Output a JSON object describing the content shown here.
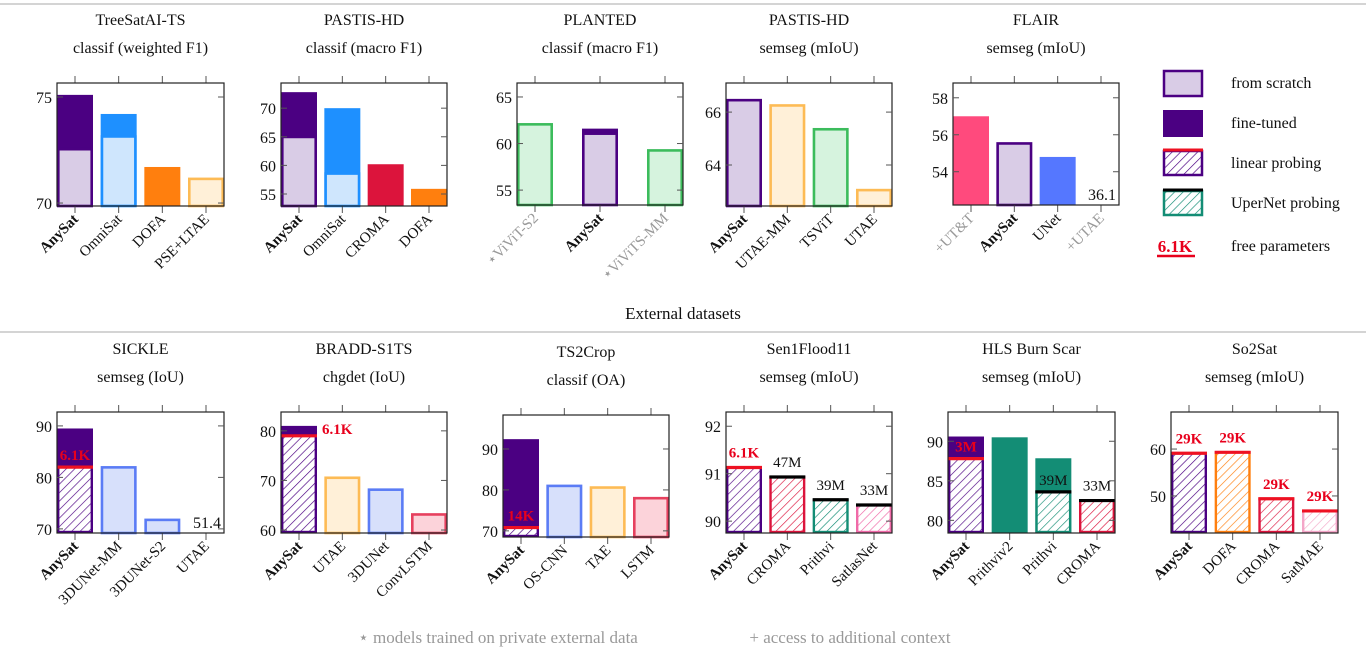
{
  "section_label": "External datasets",
  "footnotes": [
    "⋆ models trained on private external data",
    "+ access to additional context"
  ],
  "colors": {
    "red_annotation": "#e8001c",
    "gray_label": "#999999",
    "upernet_line": "#000000",
    "linear_line": "#ee1122"
  },
  "legend": [
    {
      "label": "from scratch",
      "method": "scratch",
      "color": "#4b0082",
      "light": "#d9cce6"
    },
    {
      "label": "fine-tuned",
      "method": "finetuned",
      "color": "#4b0082"
    },
    {
      "label": "linear probing",
      "method": "linear",
      "color": "#4b0082"
    },
    {
      "label": "UperNet probing",
      "method": "upernet",
      "color": "#138d75"
    },
    {
      "label": "free parameters",
      "method": "params",
      "sample": "6.1K",
      "color": "#e8001c"
    }
  ],
  "chart_data": [
    {
      "type": "bar",
      "title": "TreeSatAI-TS",
      "subtitle": "classif (weighted F1)",
      "ylim": [
        69.86,
        75.66
      ],
      "yticks": [
        70,
        75
      ],
      "bars": [
        {
          "label": "AnySat",
          "bold": true,
          "color": "#4b0082",
          "light": "#d9cce6",
          "segments": [
            {
              "method": "finetuned",
              "value": 75.1
            },
            {
              "method": "scratch",
              "value": 72.6
            }
          ]
        },
        {
          "label": "OmniSat",
          "color": "#1e90ff",
          "light": "#cfe6fd",
          "segments": [
            {
              "method": "finetuned",
              "value": 74.2
            },
            {
              "method": "scratch",
              "value": 73.2
            }
          ]
        },
        {
          "label": "DOFA",
          "color": "#ff7f0e",
          "segments": [
            {
              "method": "finetuned",
              "value": 71.7
            }
          ]
        },
        {
          "label": "PSE+LTAE",
          "color": "#fdbb55",
          "light": "#fff0d8",
          "segments": [
            {
              "method": "scratch",
              "value": 71.2
            }
          ]
        }
      ]
    },
    {
      "type": "bar",
      "title": "PASTIS-HD",
      "subtitle": "classif (macro F1)",
      "ylim": [
        52.9,
        74.4
      ],
      "yticks": [
        55,
        60,
        65,
        70
      ],
      "bars": [
        {
          "label": "AnySat",
          "bold": true,
          "color": "#4b0082",
          "light": "#d9cce6",
          "segments": [
            {
              "method": "finetuned",
              "value": 72.8
            },
            {
              "method": "scratch",
              "value": 65.2
            }
          ]
        },
        {
          "label": "OmniSat",
          "color": "#1e90ff",
          "light": "#cfe6fd",
          "segments": [
            {
              "method": "finetuned",
              "value": 70.0
            },
            {
              "method": "scratch",
              "value": 58.8
            }
          ]
        },
        {
          "label": "CROMA",
          "color": "#dc143c",
          "segments": [
            {
              "method": "finetuned",
              "value": 60.2
            }
          ]
        },
        {
          "label": "DOFA",
          "color": "#ff7f0e",
          "segments": [
            {
              "method": "finetuned",
              "value": 55.9
            }
          ]
        }
      ]
    },
    {
      "type": "bar",
      "title": "PLANTED",
      "subtitle": "classif (macro F1)",
      "ylim": [
        53.4,
        66.5
      ],
      "yticks": [
        55,
        60,
        65
      ],
      "bars": [
        {
          "label": "⋆ViViT-S2",
          "gray": true,
          "color": "#3cbc5c",
          "light": "#d6f3de",
          "segments": [
            {
              "method": "scratch",
              "value": 62.2
            }
          ]
        },
        {
          "label": "AnySat",
          "bold": true,
          "color": "#4b0082",
          "light": "#d9cce6",
          "segments": [
            {
              "method": "finetuned",
              "value": 61.6
            },
            {
              "method": "scratch",
              "value": 61.2
            }
          ]
        },
        {
          "label": "⋆ViViTS-MM",
          "gray": true,
          "color": "#3cbc5c",
          "light": "#d6f3de",
          "segments": [
            {
              "method": "scratch",
              "value": 59.4
            }
          ]
        }
      ]
    },
    {
      "type": "bar",
      "title": "PASTIS-HD",
      "subtitle": "semseg (mIoU)",
      "ylim": [
        62.45,
        67.1
      ],
      "yticks": [
        64,
        66
      ],
      "bars": [
        {
          "label": "AnySat",
          "bold": true,
          "color": "#4b0082",
          "light": "#d9cce6",
          "segments": [
            {
              "method": "scratch",
              "value": 66.5
            }
          ]
        },
        {
          "label": "UTAE-MM",
          "color": "#fdbb55",
          "light": "#fff0d8",
          "segments": [
            {
              "method": "scratch",
              "value": 66.3
            }
          ]
        },
        {
          "label": "TSViT",
          "color": "#3cbc5c",
          "light": "#d6f3de",
          "segments": [
            {
              "method": "scratch",
              "value": 65.4
            }
          ]
        },
        {
          "label": "UTAE",
          "color": "#fdbb55",
          "light": "#fff0d8",
          "segments": [
            {
              "method": "scratch",
              "value": 63.1
            }
          ]
        }
      ]
    },
    {
      "type": "bar",
      "title": "FLAIR",
      "subtitle": "semseg (mIoU)",
      "ylim": [
        52.2,
        58.8
      ],
      "yticks": [
        54,
        56,
        58
      ],
      "bars": [
        {
          "label": "+UT&T",
          "gray": true,
          "color": "#ff4a7d",
          "segments": [
            {
              "method": "finetuned",
              "value": 57.0
            }
          ]
        },
        {
          "label": "AnySat",
          "bold": true,
          "color": "#4b0082",
          "light": "#d9cce6",
          "segments": [
            {
              "method": "scratch",
              "value": 55.6
            }
          ]
        },
        {
          "label": "UNet",
          "color": "#5577ff",
          "segments": [
            {
              "method": "finetuned",
              "value": 54.8
            }
          ]
        },
        {
          "label": "+UTAE",
          "gray": true,
          "color": "#fdbb55",
          "segments": [],
          "offscale_value": "36.1"
        }
      ]
    },
    {
      "type": "bar",
      "title": "SICKLE",
      "subtitle": "semseg (IoU)",
      "ylim": [
        69.2,
        92.7
      ],
      "yticks": [
        70,
        80,
        90
      ],
      "bars": [
        {
          "label": "AnySat",
          "bold": true,
          "color": "#4b0082",
          "segments": [
            {
              "method": "finetuned",
              "value": 89.5
            },
            {
              "method": "linear",
              "value": 82.0
            }
          ],
          "annotation": {
            "text": "6.1K",
            "red": true,
            "where": "inside"
          }
        },
        {
          "label": "3DUNet-MM",
          "color": "#5b7cf5",
          "light": "#d7e0fb",
          "segments": [
            {
              "method": "scratch",
              "value": 82.2
            }
          ]
        },
        {
          "label": "3DUNet-S2",
          "color": "#5b7cf5",
          "light": "#d7e0fb",
          "segments": [
            {
              "method": "scratch",
              "value": 72.0
            }
          ]
        },
        {
          "label": "UTAE",
          "color": "#fdbb55",
          "segments": [],
          "offscale_value": "51.4"
        }
      ]
    },
    {
      "type": "bar",
      "title": "BRADD-S1TS",
      "subtitle": "chgdet (IoU)",
      "ylim": [
        59.4,
        83.8
      ],
      "yticks": [
        60,
        70,
        80
      ],
      "bars": [
        {
          "label": "AnySat",
          "bold": true,
          "color": "#4b0082",
          "segments": [
            {
              "method": "finetuned",
              "value": 81.0
            },
            {
              "method": "linear",
              "value": 79.0
            }
          ],
          "annotation": {
            "text": "6.1K",
            "red": true,
            "where": "right"
          }
        },
        {
          "label": "UTAE",
          "color": "#fdbb55",
          "light": "#fff0d8",
          "segments": [
            {
              "method": "scratch",
              "value": 70.8
            }
          ]
        },
        {
          "label": "3DUNet",
          "color": "#5b7cf5",
          "light": "#d7e0fb",
          "segments": [
            {
              "method": "scratch",
              "value": 68.4
            }
          ]
        },
        {
          "label": "ConvLSTM",
          "color": "#e6405e",
          "light": "#fcd3da",
          "segments": [
            {
              "method": "scratch",
              "value": 63.4
            }
          ]
        }
      ]
    },
    {
      "type": "bar",
      "title": "TS2Crop",
      "subtitle": "classif (OA)",
      "ylim": [
        68.5,
        98.3
      ],
      "yticks": [
        70,
        80,
        90
      ],
      "bars": [
        {
          "label": "AnySat",
          "bold": true,
          "color": "#4b0082",
          "segments": [
            {
              "method": "finetuned",
              "value": 92.4
            },
            {
              "method": "linear",
              "value": 70.8
            }
          ],
          "annotation": {
            "text": "14K",
            "red": true,
            "where": "inside"
          }
        },
        {
          "label": "OS-CNN",
          "color": "#5b7cf5",
          "light": "#d7e0fb",
          "segments": [
            {
              "method": "scratch",
              "value": 81.3
            }
          ]
        },
        {
          "label": "TAE",
          "color": "#fdbb55",
          "light": "#fff0d8",
          "segments": [
            {
              "method": "scratch",
              "value": 80.9
            }
          ]
        },
        {
          "label": "LSTM",
          "color": "#e6405e",
          "light": "#fcd3da",
          "segments": [
            {
              "method": "scratch",
              "value": 78.3
            }
          ]
        }
      ]
    },
    {
      "type": "bar",
      "title": "Sen1Flood11",
      "subtitle": "semseg (mIoU)",
      "ylim": [
        89.75,
        92.3
      ],
      "yticks": [
        90,
        91,
        92
      ],
      "bars": [
        {
          "label": "AnySat",
          "bold": true,
          "color": "#4b0082",
          "segments": [
            {
              "method": "linear",
              "value": 91.13
            }
          ],
          "annotation": {
            "text": "6.1K",
            "red": true,
            "where": "above"
          }
        },
        {
          "label": "CROMA",
          "color": "#dc143c",
          "segments": [
            {
              "method": "upernet",
              "value": 90.93
            }
          ],
          "annotation": {
            "text": "47M",
            "where": "above"
          }
        },
        {
          "label": "Prithvi",
          "color": "#138d75",
          "segments": [
            {
              "method": "upernet",
              "value": 90.45
            }
          ],
          "annotation": {
            "text": "39M",
            "where": "above"
          }
        },
        {
          "label": "SatlasNet",
          "color": "#f06aa8",
          "segments": [
            {
              "method": "upernet",
              "value": 90.34
            }
          ],
          "annotation": {
            "text": "33M",
            "where": "above"
          }
        }
      ]
    },
    {
      "type": "bar",
      "title": "HLS Burn Scar",
      "subtitle": "semseg (mIoU)",
      "ylim": [
        78.4,
        93.7
      ],
      "yticks": [
        80,
        85,
        90
      ],
      "bars": [
        {
          "label": "AnySat",
          "bold": true,
          "color": "#4b0082",
          "segments": [
            {
              "method": "finetuned",
              "value": 90.6
            },
            {
              "method": "linear",
              "value": 87.8
            }
          ],
          "annotation": {
            "text": "3M",
            "red": true,
            "where": "inside"
          }
        },
        {
          "label": "Prithviv2",
          "color": "#138d75",
          "segments": [
            {
              "method": "finetuned",
              "value": 90.5
            }
          ]
        },
        {
          "label": "Prithvi",
          "color": "#138d75",
          "segments": [
            {
              "method": "finetuned",
              "value": 87.85
            },
            {
              "method": "upernet",
              "value": 83.6
            }
          ],
          "annotation": {
            "text": "39M",
            "where": "inside"
          }
        },
        {
          "label": "CROMA",
          "color": "#dc143c",
          "segments": [
            {
              "method": "upernet",
              "value": 82.5
            }
          ],
          "annotation": {
            "text": "33M",
            "where": "above"
          }
        }
      ]
    },
    {
      "type": "bar",
      "title": "So2Sat",
      "subtitle": "semseg (mIoU)",
      "ylim": [
        42.1,
        67.9
      ],
      "yticks": [
        50,
        60
      ],
      "bars": [
        {
          "label": "AnySat",
          "bold": true,
          "color": "#4b0082",
          "segments": [
            {
              "method": "linear",
              "value": 59.1
            }
          ],
          "annotation": {
            "text": "29K",
            "red": true,
            "where": "above"
          }
        },
        {
          "label": "DOFA",
          "color": "#ff7f0e",
          "segments": [
            {
              "method": "linear",
              "value": 59.3
            }
          ],
          "annotation": {
            "text": "29K",
            "red": true,
            "where": "above"
          }
        },
        {
          "label": "CROMA",
          "color": "#dc143c",
          "segments": [
            {
              "method": "linear",
              "value": 49.4
            }
          ],
          "annotation": {
            "text": "29K",
            "red": true,
            "where": "above"
          }
        },
        {
          "label": "SatMAE",
          "color": "#f4a6c8",
          "segments": [
            {
              "method": "linear",
              "value": 46.8
            }
          ],
          "annotation": {
            "text": "29K",
            "red": true,
            "where": "above"
          }
        }
      ]
    }
  ]
}
